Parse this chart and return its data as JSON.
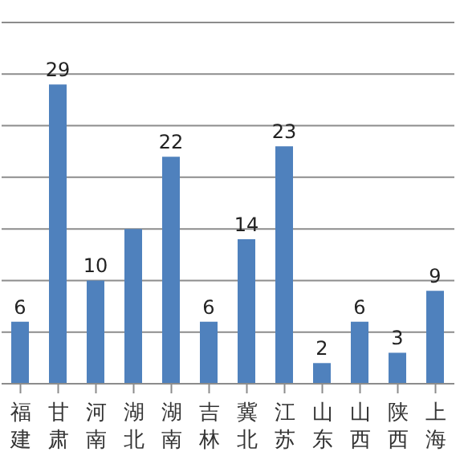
{
  "chart_data": {
    "type": "bar",
    "categories": [
      "福建",
      "甘肃",
      "河南",
      "湖北",
      "湖南",
      "吉林",
      "冀北",
      "江苏",
      "山东",
      "山西",
      "陕西",
      "上海"
    ],
    "values": [
      6,
      29,
      10,
      15,
      22,
      6,
      14,
      23,
      2,
      6,
      3,
      9
    ],
    "value_labels": [
      "6",
      "29",
      "10",
      null,
      "22",
      "6",
      "14",
      "23",
      "2",
      "6",
      "3",
      "9"
    ],
    "color": "#4f81bd",
    "ylim": [
      0,
      35
    ],
    "yticks": [
      {
        "value": 0,
        "label": null
      },
      {
        "value": 5,
        "label": null
      },
      {
        "value": 10,
        "label": null
      },
      {
        "value": 15,
        "label": null
      },
      {
        "value": 20,
        "label": null
      },
      {
        "value": 25,
        "label": null
      },
      {
        "value": 30,
        "label": null
      },
      {
        "value": 35,
        "label": null
      }
    ],
    "grid": "y",
    "tick_labels": "x"
  }
}
